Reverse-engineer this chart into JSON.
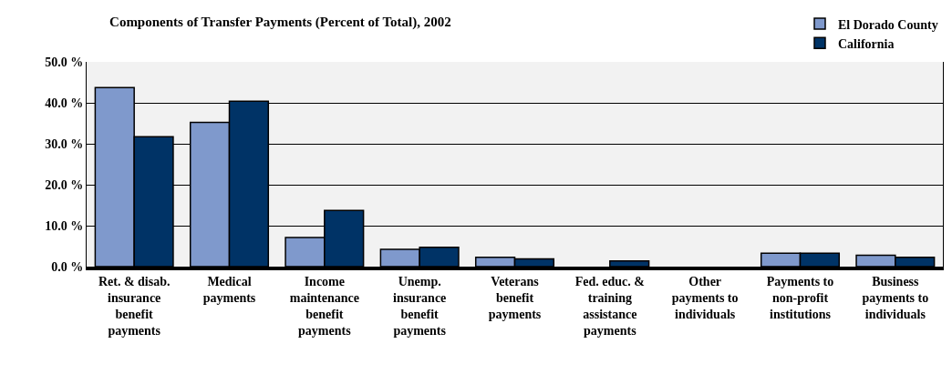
{
  "chart_data": {
    "type": "bar",
    "title": "Components of Transfer Payments (Percent of Total), 2002",
    "categories": [
      "Ret. & disab. insurance benefit payments",
      "Medical payments",
      "Income maintenance benefit payments",
      "Unemp. insurance benefit payments",
      "Veterans benefit payments",
      "Fed. educ. & training assistance payments",
      "Other payments to individuals",
      "Payments to non-profit institutions",
      "Business payments to individuals"
    ],
    "series": [
      {
        "name": "El Dorado County",
        "color": "#7f99cc",
        "values": [
          43.7,
          35.2,
          7.1,
          4.2,
          2.3,
          0,
          0,
          3.3,
          2.8
        ]
      },
      {
        "name": "California",
        "color": "#003366",
        "values": [
          31.7,
          40.4,
          13.7,
          4.7,
          1.9,
          1.4,
          0,
          3.3,
          2.3
        ]
      }
    ],
    "ylim": [
      0,
      50
    ],
    "yticks": [
      {
        "value": 0,
        "label": "0.0 %"
      },
      {
        "value": 10,
        "label": "10.0 %"
      },
      {
        "value": 20,
        "label": "20.0 %"
      },
      {
        "value": 30,
        "label": "30.0 %"
      },
      {
        "value": 40,
        "label": "40.0 %"
      },
      {
        "value": 50,
        "label": "50.0 %"
      }
    ],
    "grid": "y",
    "legend": "top right"
  }
}
